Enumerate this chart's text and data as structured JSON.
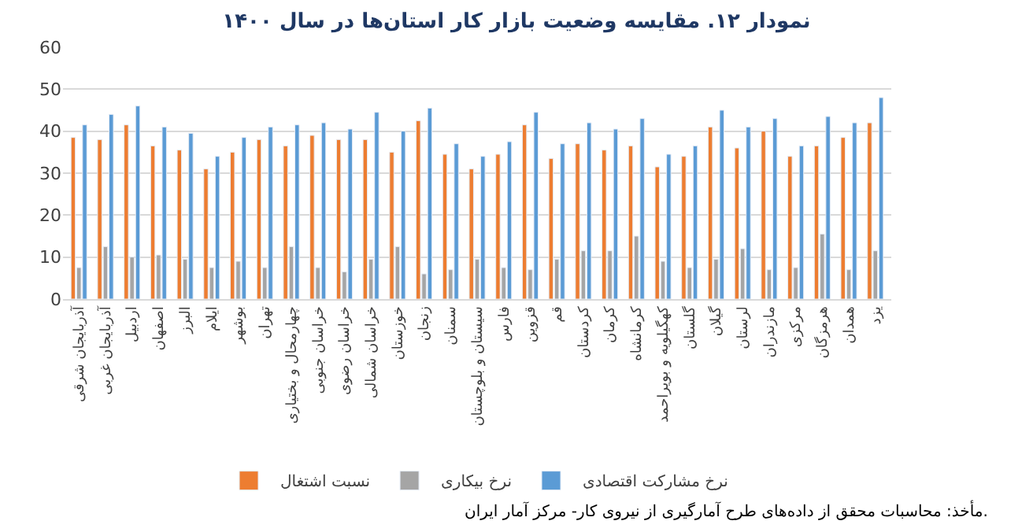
{
  "chart_data": {
    "type": "bar",
    "title": "نمودار ۱۲. مقایسه وضعیت بازار کار استان‌ها در سال ۱۴۰۰",
    "categories": [
      "آذربایجان شرقی",
      "آذربایجان غربی",
      "اردبیل",
      "اصفهان",
      "البرز",
      "ایلام",
      "بوشهر",
      "تهران",
      "چهارمحال و بختیاری",
      "خراسان جنوبی",
      "خراسان رضوی",
      "خراسان شمالی",
      "خوزستان",
      "زنجان",
      "سمنان",
      "سیستان و بلوچستان",
      "فارس",
      "قزوین",
      "قم",
      "کردستان",
      "کرمان",
      "کرمانشاه",
      "کهگیلویه و بویراحمد",
      "گلستان",
      "گیلان",
      "لرستان",
      "مازندران",
      "مرکزی",
      "هرمزگان",
      "همدان",
      "یزد"
    ],
    "series": [
      {
        "name": "نسبت اشتغال",
        "color": "#ed7d31",
        "values": [
          38.5,
          38,
          41.5,
          36.5,
          35.5,
          31,
          35,
          38,
          36.5,
          39,
          38,
          38,
          35,
          42.5,
          34.5,
          31,
          34.5,
          41.5,
          33.5,
          37,
          35.5,
          36.5,
          31.5,
          34,
          41,
          36,
          40,
          34,
          36.5,
          38.5,
          42
        ]
      },
      {
        "name": "نرخ بیکاری",
        "color": "#a5a5a5",
        "values": [
          7.5,
          12.5,
          10,
          10.5,
          9.5,
          7.5,
          9,
          7.5,
          12.5,
          7.5,
          6.5,
          9.5,
          12.5,
          6,
          7,
          9.5,
          7.5,
          7,
          9.5,
          11.5,
          11.5,
          15,
          9,
          7.5,
          9.5,
          12,
          7,
          7.5,
          15.5,
          7,
          11.5
        ]
      },
      {
        "name": "نرخ مشارکت اقتصادی",
        "color": "#5b9bd5",
        "values": [
          41.5,
          44,
          46,
          41,
          39.5,
          34,
          38.5,
          41,
          41.5,
          42,
          40.5,
          44.5,
          40,
          45.5,
          37,
          34,
          37.5,
          44.5,
          37,
          42,
          40.5,
          43,
          34.5,
          36.5,
          45,
          41,
          43,
          36.5,
          43.5,
          42,
          48
        ]
      }
    ],
    "ylim": [
      0,
      60
    ],
    "yticks": [
      0,
      10,
      20,
      30,
      40,
      50,
      60
    ],
    "grid": "y",
    "legend": "bottom",
    "annotations": [
      "مأخذ: محاسبات محقق از داده‌های طرح آمارگیری از نیروی کار- مرکز آمار ایران."
    ]
  }
}
